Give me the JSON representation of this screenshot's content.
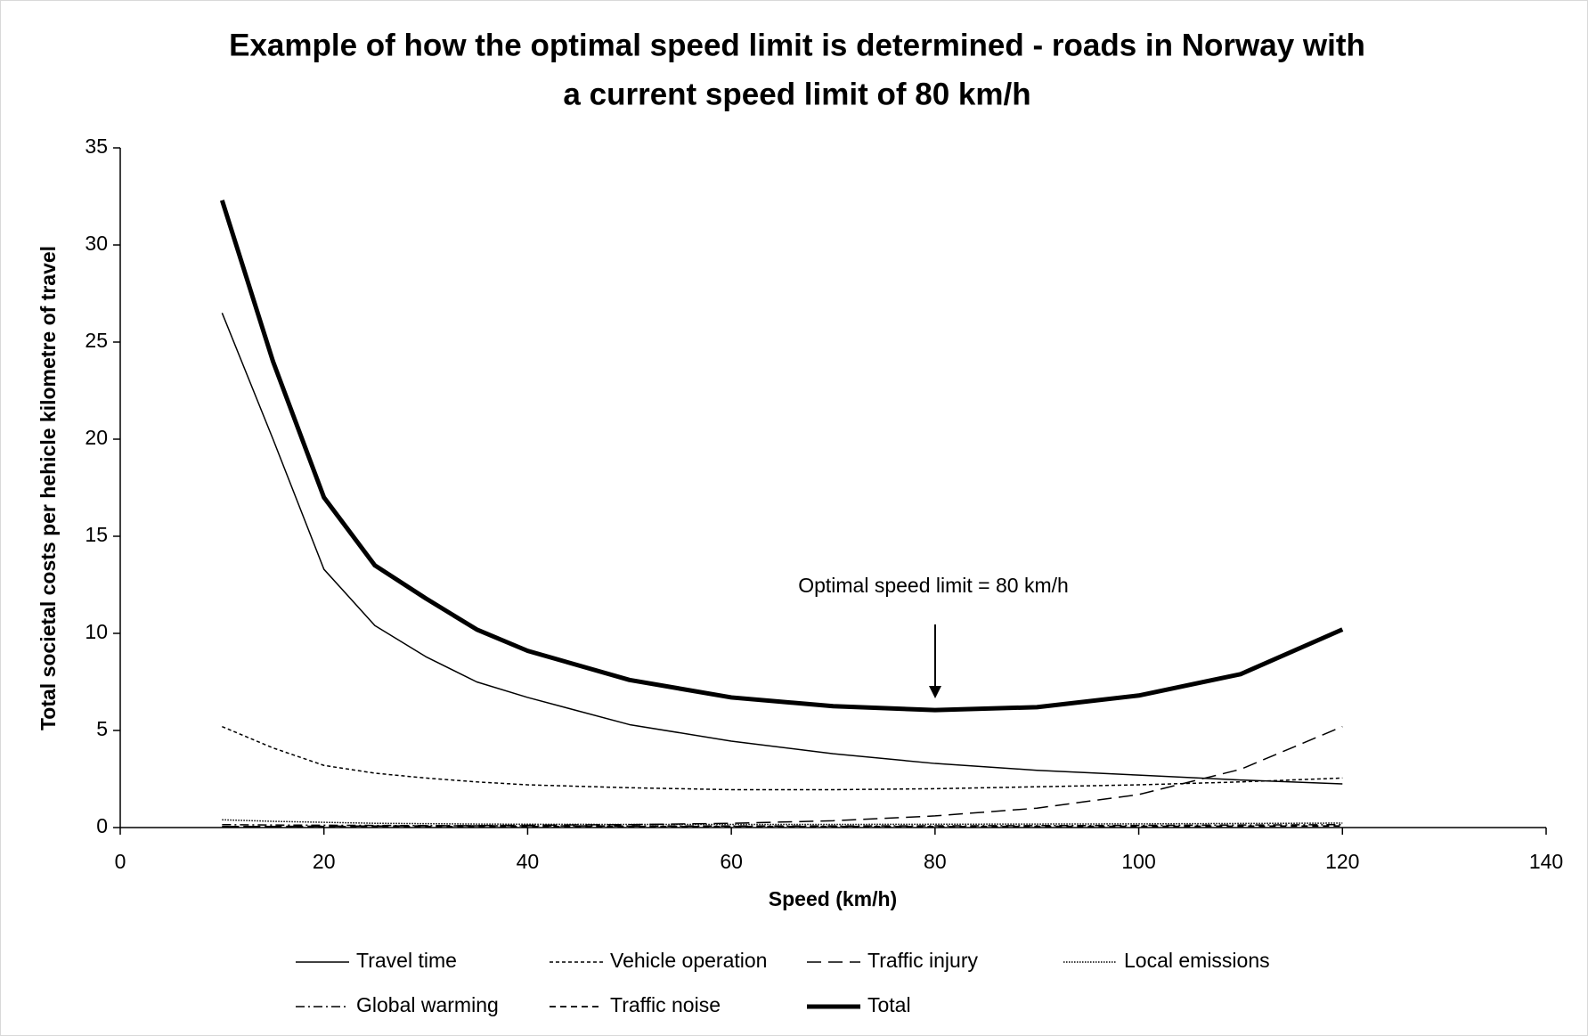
{
  "chart_data": {
    "type": "line",
    "title": [
      "Example of how the optimal speed limit is determined - roads in Norway with",
      "a current speed limit of 80 km/h"
    ],
    "xlabel": "Speed (km/h)",
    "ylabel": "Total societal costs per hehicle kilometre of travel",
    "annotation": "Optimal speed limit = 80 km/h",
    "x": [
      10,
      15,
      20,
      25,
      30,
      35,
      40,
      50,
      60,
      70,
      80,
      90,
      100,
      110,
      120
    ],
    "series": [
      {
        "name": "Travel time",
        "color": "#000000",
        "values": [
          26.5,
          20,
          13.3,
          10.4,
          8.8,
          7.5,
          6.7,
          5.3,
          4.45,
          3.8,
          3.3,
          2.95,
          2.7,
          2.45,
          2.25
        ]
      },
      {
        "name": "Vehicle operation",
        "color": "#000000",
        "values": [
          5.2,
          4.1,
          3.2,
          2.8,
          2.55,
          2.35,
          2.2,
          2.05,
          1.95,
          1.95,
          2.0,
          2.1,
          2.2,
          2.35,
          2.55
        ]
      },
      {
        "name": "Traffic injury",
        "color": "#000000",
        "values": [
          0.05,
          0.06,
          0.07,
          0.08,
          0.09,
          0.1,
          0.12,
          0.15,
          0.22,
          0.35,
          0.6,
          1.0,
          1.7,
          3.0,
          5.2
        ]
      },
      {
        "name": "Local emissions",
        "color": "#000000",
        "values": [
          0.4,
          0.32,
          0.27,
          0.22,
          0.2,
          0.18,
          0.17,
          0.16,
          0.16,
          0.16,
          0.17,
          0.18,
          0.19,
          0.21,
          0.23
        ]
      },
      {
        "name": "Global warming",
        "color": "#000000",
        "values": [
          0.15,
          0.13,
          0.12,
          0.11,
          0.1,
          0.09,
          0.09,
          0.08,
          0.08,
          0.08,
          0.09,
          0.1,
          0.11,
          0.13,
          0.15
        ]
      },
      {
        "name": "Traffic noise",
        "color": "#000000",
        "values": [
          0.05,
          0.05,
          0.05,
          0.05,
          0.05,
          0.05,
          0.05,
          0.05,
          0.05,
          0.05,
          0.05,
          0.06,
          0.06,
          0.07,
          0.08
        ]
      },
      {
        "name": "Total",
        "color": "#000000",
        "values": [
          32.3,
          24,
          17,
          13.5,
          11.8,
          10.2,
          9.1,
          7.6,
          6.7,
          6.25,
          6.05,
          6.2,
          6.8,
          7.9,
          10.2
        ]
      }
    ],
    "xlim": [
      0,
      140
    ],
    "xticks": [
      0,
      20,
      40,
      60,
      80,
      100,
      120,
      140
    ],
    "ylim": [
      0,
      35
    ],
    "yticks": [
      0,
      5,
      10,
      15,
      20,
      25,
      30,
      35
    ],
    "grid": false,
    "legend": "bottom"
  }
}
